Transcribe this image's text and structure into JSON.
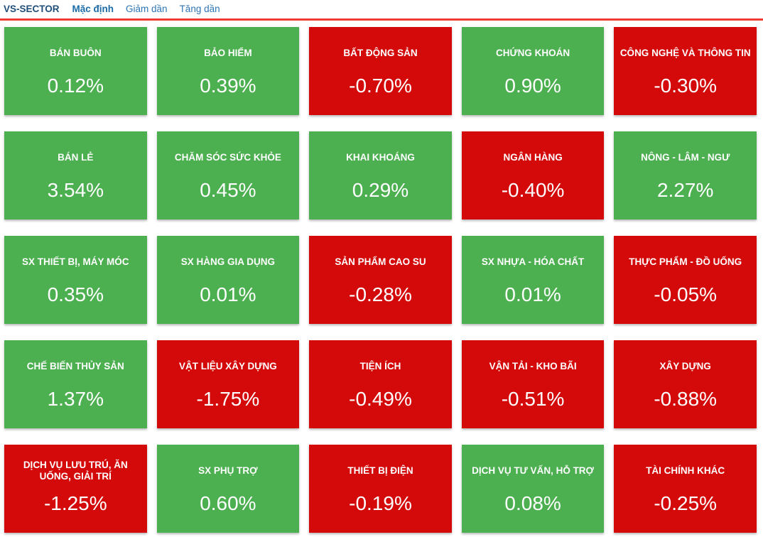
{
  "header": {
    "title": "VS-SECTOR",
    "tabs": [
      {
        "label": "Mặc định",
        "active": true
      },
      {
        "label": "Giảm dần",
        "active": false
      },
      {
        "label": "Tăng dần",
        "active": false
      }
    ],
    "underline_color": "#f13c33"
  },
  "colors": {
    "up": "#4caf50",
    "down": "#d40a0a",
    "text": "#ffffff"
  },
  "tiles": [
    {
      "name": "BÁN BUÔN",
      "value": "0.12%",
      "direction": "up"
    },
    {
      "name": "BẢO HIỂM",
      "value": "0.39%",
      "direction": "up"
    },
    {
      "name": "BẤT ĐỘNG SẢN",
      "value": "-0.70%",
      "direction": "down"
    },
    {
      "name": "CHỨNG KHOÁN",
      "value": "0.90%",
      "direction": "up"
    },
    {
      "name": "CÔNG NGHỆ VÀ THÔNG TIN",
      "value": "-0.30%",
      "direction": "down"
    },
    {
      "name": "BÁN LẺ",
      "value": "3.54%",
      "direction": "up"
    },
    {
      "name": "CHĂM SÓC SỨC KHỎE",
      "value": "0.45%",
      "direction": "up"
    },
    {
      "name": "KHAI KHOÁNG",
      "value": "0.29%",
      "direction": "up"
    },
    {
      "name": "NGÂN HÀNG",
      "value": "-0.40%",
      "direction": "down"
    },
    {
      "name": "NÔNG - LÂM - NGƯ",
      "value": "2.27%",
      "direction": "up"
    },
    {
      "name": "SX THIẾT BỊ, MÁY MÓC",
      "value": "0.35%",
      "direction": "up"
    },
    {
      "name": "SX HÀNG GIA DỤNG",
      "value": "0.01%",
      "direction": "up"
    },
    {
      "name": "SẢN PHẨM CAO SU",
      "value": "-0.28%",
      "direction": "down"
    },
    {
      "name": "SX NHỰA - HÓA CHẤT",
      "value": "0.01%",
      "direction": "up"
    },
    {
      "name": "THỰC PHẨM - ĐỒ UỐNG",
      "value": "-0.05%",
      "direction": "down"
    },
    {
      "name": "CHẾ BIẾN THỦY SẢN",
      "value": "1.37%",
      "direction": "up"
    },
    {
      "name": "VẬT LIỆU XÂY DỰNG",
      "value": "-1.75%",
      "direction": "down"
    },
    {
      "name": "TIỆN ÍCH",
      "value": "-0.49%",
      "direction": "down"
    },
    {
      "name": "VẬN TẢI - KHO BÃI",
      "value": "-0.51%",
      "direction": "down"
    },
    {
      "name": "XÂY DỰNG",
      "value": "-0.88%",
      "direction": "down"
    },
    {
      "name": "DỊCH VỤ LƯU TRÚ, ĂN UỐNG, GIẢI TRÍ",
      "value": "-1.25%",
      "direction": "down"
    },
    {
      "name": "SX PHỤ TRỢ",
      "value": "0.60%",
      "direction": "up"
    },
    {
      "name": "THIẾT BỊ ĐIỆN",
      "value": "-0.19%",
      "direction": "down"
    },
    {
      "name": "DỊCH VỤ TƯ VẤN, HỖ TRỢ",
      "value": "0.08%",
      "direction": "up"
    },
    {
      "name": "TÀI CHÍNH KHÁC",
      "value": "-0.25%",
      "direction": "down"
    }
  ],
  "chart_data": {
    "type": "heatmap",
    "title": "VS-SECTOR",
    "unit": "%",
    "layout": "5x5 tile grid, row-major order",
    "color_rule": "green tile if value >= 0, red tile if value < 0",
    "categories": [
      "BÁN BUÔN",
      "BẢO HIỂM",
      "BẤT ĐỘNG SẢN",
      "CHỨNG KHOÁN",
      "CÔNG NGHỆ VÀ THÔNG TIN",
      "BÁN LẺ",
      "CHĂM SÓC SỨC KHỎE",
      "KHAI KHOÁNG",
      "NGÂN HÀNG",
      "NÔNG - LÂM - NGƯ",
      "SX THIẾT BỊ, MÁY MÓC",
      "SX HÀNG GIA DỤNG",
      "SẢN PHẨM CAO SU",
      "SX NHỰA - HÓA CHẤT",
      "THỰC PHẨM - ĐỒ UỐNG",
      "CHẾ BIẾN THỦY SẢN",
      "VẬT LIỆU XÂY DỰNG",
      "TIỆN ÍCH",
      "VẬN TẢI - KHO BÃI",
      "XÂY DỰNG",
      "DỊCH VỤ LƯU TRÚ, ĂN UỐNG, GIẢI TRÍ",
      "SX PHỤ TRỢ",
      "THIẾT BỊ ĐIỆN",
      "DỊCH VỤ TƯ VẤN, HỖ TRỢ",
      "TÀI CHÍNH KHÁC"
    ],
    "values": [
      0.12,
      0.39,
      -0.7,
      0.9,
      -0.3,
      3.54,
      0.45,
      0.29,
      -0.4,
      2.27,
      0.35,
      0.01,
      -0.28,
      0.01,
      -0.05,
      1.37,
      -1.75,
      -0.49,
      -0.51,
      -0.88,
      -1.25,
      0.6,
      -0.19,
      0.08,
      -0.25
    ]
  }
}
